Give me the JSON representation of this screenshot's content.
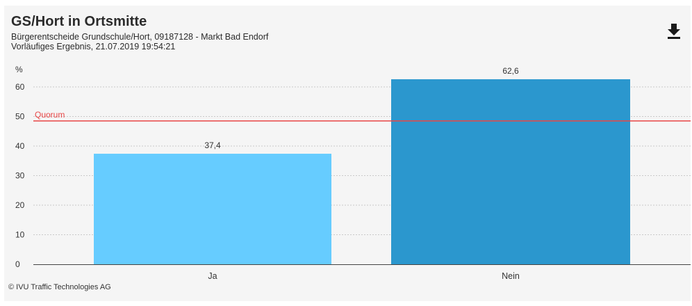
{
  "header": {
    "title": "GS/Hort in Ortsmitte",
    "subtitle": "Bürgerentscheide Grundschule/Hort, 09187128 - Markt Bad Endorf",
    "status": "Vorläufiges Ergebnis, 21.07.2019 19:54:21"
  },
  "footer": {
    "credit": "© IVU Traffic Technologies AG"
  },
  "colors": {
    "ja": "#66ccff",
    "nein": "#2b97ce",
    "quorum": "#e84646",
    "grid": "#c9c9c9",
    "axis": "#444444",
    "panel": "#f5f5f5"
  },
  "icons": {
    "download": "download-icon"
  },
  "chart_data": {
    "type": "bar",
    "categories": [
      "Ja",
      "Nein"
    ],
    "values": [
      37.4,
      62.6
    ],
    "value_labels": [
      "37,4",
      "62,6"
    ],
    "ylabel": "%",
    "ylim": [
      0,
      60
    ],
    "yticks": [
      0,
      10,
      20,
      30,
      40,
      50,
      60
    ],
    "reference_lines": [
      {
        "label": "Quorum",
        "value": 48.5
      }
    ],
    "grid": true,
    "legend": "none"
  }
}
